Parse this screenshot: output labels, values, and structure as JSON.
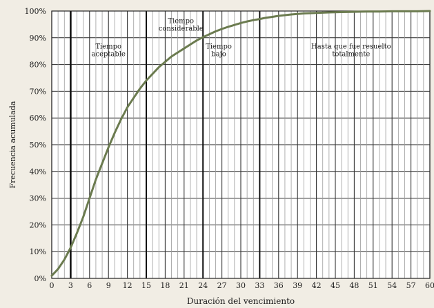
{
  "chart_data": {
    "type": "line",
    "title": "",
    "xlabel": "Duración del vencimiento",
    "ylabel": "Frecuencia acumulada",
    "xlim": [
      0,
      60
    ],
    "ylim": [
      0,
      100
    ],
    "x_ticks": [
      0,
      3,
      6,
      9,
      12,
      15,
      18,
      21,
      24,
      27,
      30,
      33,
      36,
      39,
      42,
      45,
      48,
      51,
      54,
      57,
      60
    ],
    "y_ticks": [
      "0%",
      "10%",
      "20%",
      "30%",
      "40%",
      "50%",
      "60%",
      "70%",
      "80%",
      "90%",
      "100%"
    ],
    "grid": true,
    "series": [
      {
        "x": [
          0,
          1,
          2,
          3,
          4,
          5,
          6,
          7,
          8,
          9,
          10,
          11,
          12,
          13,
          14,
          15,
          16,
          17,
          18,
          19,
          20,
          21,
          22,
          23,
          24,
          25,
          26,
          27,
          28,
          29,
          30,
          31,
          32,
          33,
          34,
          35,
          36,
          38,
          40,
          42,
          44,
          46,
          48,
          50,
          52,
          54,
          56,
          58,
          60
        ],
        "y": [
          1,
          3.5,
          7,
          11.5,
          17,
          23,
          30,
          37,
          43,
          49,
          54.5,
          59.5,
          64,
          67.5,
          71,
          74,
          76.5,
          79,
          81,
          83,
          84.5,
          86,
          87.5,
          89,
          90.2,
          91.3,
          92.4,
          93.3,
          94.1,
          94.8,
          95.5,
          96.1,
          96.6,
          97,
          97.5,
          97.8,
          98.2,
          98.7,
          99.1,
          99.3,
          99.5,
          99.6,
          99.7,
          99.8,
          99.8,
          99.9,
          99.9,
          99.9,
          100
        ]
      }
    ],
    "annotations": [
      {
        "text": [
          "Tiempo",
          "aceptable"
        ],
        "x": 9,
        "y": 86
      },
      {
        "text": [
          "Tiempo",
          "considerable"
        ],
        "x": 20.5,
        "y": 95.5
      },
      {
        "text": [
          "Tiempo",
          "bajo"
        ],
        "x": 26.5,
        "y": 86
      },
      {
        "text": [
          "Hasta que fue resuelto",
          "totalmente"
        ],
        "x": 47.5,
        "y": 86
      }
    ],
    "highlight_x": [
      3,
      15,
      24,
      33
    ]
  }
}
